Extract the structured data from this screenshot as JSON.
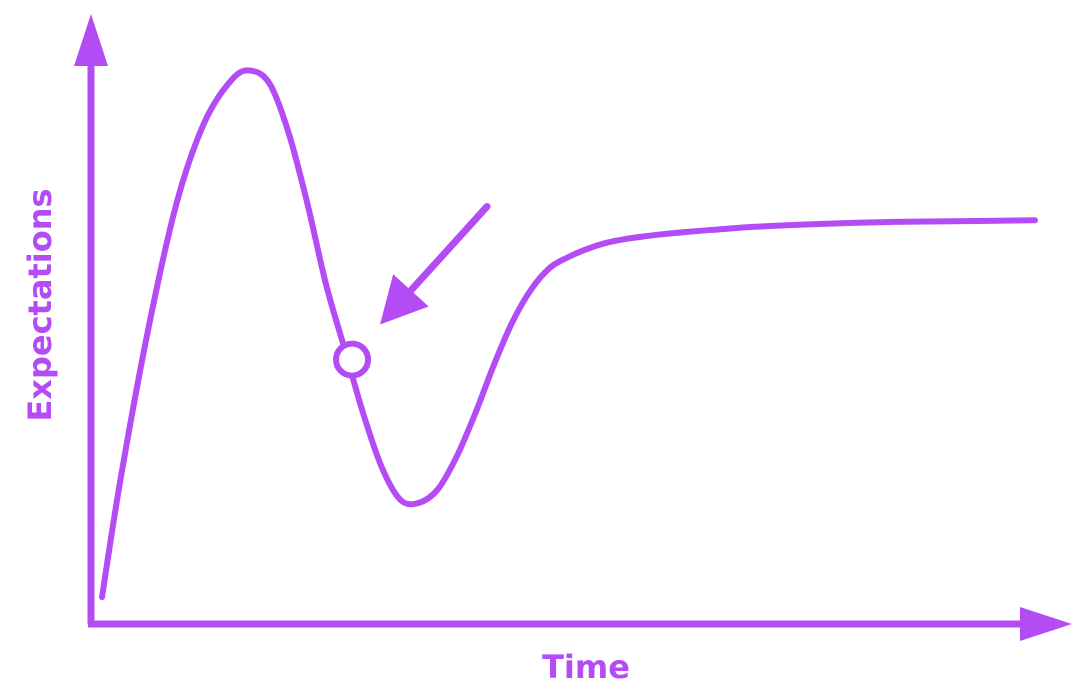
{
  "chart_data": {
    "type": "line",
    "title": "",
    "xlabel": "Time",
    "ylabel": "Expectations",
    "grid": false,
    "legend": "none",
    "axis_ticks": false,
    "color": "#b44cf5",
    "xlim": [
      0,
      100
    ],
    "ylim": [
      0,
      100
    ],
    "series": [
      {
        "x": [
          0,
          2,
          5,
          8,
          11,
          14,
          16,
          18,
          20,
          22,
          24,
          26,
          28,
          30,
          32,
          34,
          36,
          38,
          40,
          42,
          44,
          46,
          48,
          50,
          52,
          54,
          56,
          58,
          60,
          63,
          66,
          70,
          75,
          80,
          85,
          90,
          95,
          100
        ],
        "y": [
          2,
          24,
          52,
          75,
          90,
          98,
          99.5,
          97,
          88,
          75,
          60,
          48,
          36,
          26,
          20,
          19.5,
          22,
          28,
          36,
          45,
          53,
          59,
          63,
          65,
          66.5,
          67.6,
          68.3,
          68.8,
          69.2,
          69.7,
          70.1,
          70.6,
          71.0,
          71.3,
          71.5,
          71.6,
          71.7,
          71.8
        ]
      }
    ],
    "annotations": [
      {
        "type": "marker",
        "shape": "hollow-circle",
        "x": 26.8,
        "y": 46
      },
      {
        "type": "arrow",
        "points_to": {
          "x": 29.8,
          "y": 52.5
        }
      }
    ]
  }
}
